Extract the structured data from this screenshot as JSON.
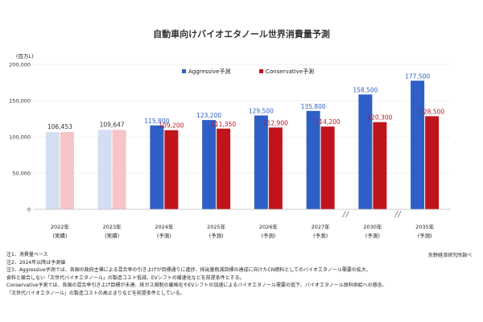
{
  "chart_data": {
    "type": "bar",
    "title": "自動車向けバイオエタノール世界消費量予測",
    "unit_label": "(百万L)",
    "ylim": [
      0,
      200000
    ],
    "yticks": [
      0,
      50000,
      100000,
      150000,
      200000
    ],
    "ytick_labels": [
      "0",
      "50,000",
      "100,000",
      "150,000",
      "200,000"
    ],
    "grid": true,
    "legend_position": "top",
    "categories": [
      {
        "year": "2022年",
        "sub": "(実績)",
        "type": "actual"
      },
      {
        "year": "2023年",
        "sub": "(実績)",
        "type": "actual"
      },
      {
        "year": "2024年",
        "sub": "(予測)",
        "type": "forecast"
      },
      {
        "year": "2025年",
        "sub": "(予測)",
        "type": "forecast"
      },
      {
        "year": "2026年",
        "sub": "(予測)",
        "type": "forecast"
      },
      {
        "year": "2027年",
        "sub": "(予測)",
        "type": "forecast"
      },
      {
        "year": "2030年",
        "sub": "(予測)",
        "type": "forecast"
      },
      {
        "year": "2035年",
        "sub": "(予測)",
        "type": "forecast"
      }
    ],
    "actual_values": [
      106453,
      109647
    ],
    "actual_labels": [
      "106,453",
      "109,647"
    ],
    "series": [
      {
        "name": "Aggressive予測",
        "color": "#2e5fc6",
        "actual_color": "#d4def3",
        "values": [
          106453,
          109647,
          115800,
          123200,
          129500,
          135800,
          158500,
          177500
        ],
        "labels": [
          "",
          "",
          "115,800",
          "123,200",
          "129,500",
          "135,800",
          "158,500",
          "177,500"
        ]
      },
      {
        "name": "Conservative予測",
        "color": "#c0141c",
        "actual_color": "#f6c4c6",
        "values": [
          106453,
          109647,
          109200,
          111350,
          112900,
          114200,
          120300,
          128500
        ],
        "labels": [
          "",
          "",
          "109,200",
          "111,350",
          "112,900",
          "114,200",
          "120,300",
          "128,500"
        ]
      }
    ],
    "axis_breaks_after": [
      5,
      6
    ]
  },
  "notes": [
    "注1．消費量ベース",
    "注2．2024年以降は予測値",
    "注3．Aggressive予測では、各国の政府主導による混合率の引き上げが目標通りに進捗、排出量削減目標の達成に向けたCN燃料としてのバイオエタノール需要の拡大、",
    "食料と競合しない「次世代バイオエタノール」の製造コスト低減、EVシフトの緩速化などを前提条件とする。",
    "Conservative予測では、各国の混合率引き上げ目標が未達、排ガス規制の厳格化やEVシフトの加速によるバイオエタノール需要の低下、バイオエタノール原料供給への懸念、",
    "「次世代バイオエタノール」の製造コストの高止まりなどを前提条件としている。"
  ],
  "source": "矢野経済研究所調べ"
}
